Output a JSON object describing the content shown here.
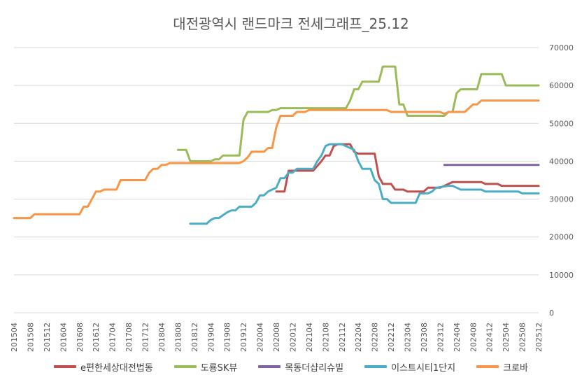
{
  "chart_data": {
    "type": "line",
    "title": "대전광역시 랜드마크 전세그래프_25.12",
    "xlabel": "",
    "ylabel": "",
    "ylim": [
      0,
      70000
    ],
    "yticks": [
      "0",
      "10000",
      "20000",
      "30000",
      "40000",
      "50000",
      "60000",
      "70000"
    ],
    "y_axis_position": "right",
    "grid": true,
    "legend_position": "bottom",
    "x_start": "201504",
    "x_end": "202512",
    "x_tick_labels": [
      "201504",
      "201508",
      "201512",
      "201604",
      "201608",
      "201612",
      "201704",
      "201708",
      "201712",
      "201804",
      "201808",
      "201812",
      "201904",
      "201908",
      "201912",
      "202004",
      "202008",
      "202012",
      "202104",
      "202108",
      "202112",
      "202204",
      "202208",
      "202212",
      "202304",
      "202308",
      "202312",
      "202404",
      "202408",
      "202412",
      "202504",
      "202508",
      "202512"
    ],
    "series": [
      {
        "name": "e편한세상대전법동",
        "color": "#C0504D",
        "points": [
          [
            "202008",
            32000
          ],
          [
            "202010",
            32000
          ],
          [
            "202011",
            37500
          ],
          [
            "202012",
            37500
          ],
          [
            "202105",
            37500
          ],
          [
            "202107",
            40000
          ],
          [
            "202108",
            41500
          ],
          [
            "202109",
            41500
          ],
          [
            "202110",
            44000
          ],
          [
            "202111",
            44500
          ],
          [
            "202202",
            44500
          ],
          [
            "202203",
            42500
          ],
          [
            "202204",
            42000
          ],
          [
            "202208",
            42000
          ],
          [
            "202209",
            36000
          ],
          [
            "202210",
            34000
          ],
          [
            "202212",
            34000
          ],
          [
            "202301",
            32500
          ],
          [
            "202303",
            32500
          ],
          [
            "202304",
            32000
          ],
          [
            "202308",
            32000
          ],
          [
            "202309",
            33000
          ],
          [
            "202312",
            33000
          ],
          [
            "202402",
            34000
          ],
          [
            "202403",
            34500
          ],
          [
            "202410",
            34500
          ],
          [
            "202411",
            34000
          ],
          [
            "202502",
            34000
          ],
          [
            "202503",
            33500
          ],
          [
            "202512",
            33500
          ]
        ]
      },
      {
        "name": "도룡SK뷰",
        "color": "#9BBB59",
        "points": [
          [
            "201808",
            43000
          ],
          [
            "201810",
            43000
          ],
          [
            "201811",
            40000
          ],
          [
            "201904",
            40000
          ],
          [
            "201905",
            40500
          ],
          [
            "201906",
            40500
          ],
          [
            "201907",
            41500
          ],
          [
            "201911",
            41500
          ],
          [
            "201912",
            51000
          ],
          [
            "202001",
            53000
          ],
          [
            "202006",
            53000
          ],
          [
            "202007",
            53500
          ],
          [
            "202008",
            53500
          ],
          [
            "202009",
            54000
          ],
          [
            "202112",
            54000
          ],
          [
            "202201",
            54000
          ],
          [
            "202202",
            56000
          ],
          [
            "202203",
            59000
          ],
          [
            "202204",
            59000
          ],
          [
            "202205",
            61000
          ],
          [
            "202209",
            61000
          ],
          [
            "202210",
            65000
          ],
          [
            "202301",
            65000
          ],
          [
            "202302",
            55000
          ],
          [
            "202303",
            55000
          ],
          [
            "202304",
            52000
          ],
          [
            "202401",
            52000
          ],
          [
            "202402",
            53000
          ],
          [
            "202403",
            53000
          ],
          [
            "202404",
            58000
          ],
          [
            "202405",
            59000
          ],
          [
            "202409",
            59000
          ],
          [
            "202410",
            63000
          ],
          [
            "202503",
            63000
          ],
          [
            "202504",
            60000
          ],
          [
            "202512",
            60000
          ]
        ]
      },
      {
        "name": "목동더샵리슈빌",
        "color": "#8064A2",
        "points": [
          [
            "202401",
            39000
          ],
          [
            "202512",
            39000
          ]
        ]
      },
      {
        "name": "이스트시티1단지",
        "color": "#4BACC6",
        "points": [
          [
            "201811",
            23500
          ],
          [
            "201903",
            23500
          ],
          [
            "201904",
            24500
          ],
          [
            "201905",
            25000
          ],
          [
            "201906",
            25000
          ],
          [
            "201908",
            26500
          ],
          [
            "201909",
            27000
          ],
          [
            "201910",
            27000
          ],
          [
            "201911",
            28000
          ],
          [
            "202002",
            28000
          ],
          [
            "202003",
            29000
          ],
          [
            "202004",
            31000
          ],
          [
            "202005",
            31000
          ],
          [
            "202006",
            32000
          ],
          [
            "202007",
            32500
          ],
          [
            "202008",
            33000
          ],
          [
            "202009",
            35500
          ],
          [
            "202010",
            35500
          ],
          [
            "202011",
            37000
          ],
          [
            "202012",
            37000
          ],
          [
            "202101",
            38000
          ],
          [
            "202105",
            38000
          ],
          [
            "202106",
            40000
          ],
          [
            "202107",
            41500
          ],
          [
            "202108",
            44000
          ],
          [
            "202109",
            44500
          ],
          [
            "202112",
            44500
          ],
          [
            "202201",
            44000
          ],
          [
            "202202",
            43500
          ],
          [
            "202203",
            43000
          ],
          [
            "202204",
            40000
          ],
          [
            "202205",
            38000
          ],
          [
            "202207",
            38000
          ],
          [
            "202208",
            35000
          ],
          [
            "202209",
            34000
          ],
          [
            "202210",
            30000
          ],
          [
            "202211",
            30000
          ],
          [
            "202212",
            29000
          ],
          [
            "202306",
            29000
          ],
          [
            "202307",
            31500
          ],
          [
            "202309",
            31500
          ],
          [
            "202310",
            32000
          ],
          [
            "202311",
            33000
          ],
          [
            "202402",
            33500
          ],
          [
            "202403",
            33500
          ],
          [
            "202404",
            33000
          ],
          [
            "202405",
            32500
          ],
          [
            "202410",
            32500
          ],
          [
            "202411",
            32000
          ],
          [
            "202507",
            32000
          ],
          [
            "202508",
            31500
          ],
          [
            "202512",
            31500
          ]
        ]
      },
      {
        "name": "크로바",
        "color": "#F79646",
        "points": [
          [
            "201504",
            25000
          ],
          [
            "201508",
            25000
          ],
          [
            "201509",
            26000
          ],
          [
            "201608",
            26000
          ],
          [
            "201609",
            28000
          ],
          [
            "201610",
            28000
          ],
          [
            "201612",
            32000
          ],
          [
            "201701",
            32000
          ],
          [
            "201702",
            32500
          ],
          [
            "201705",
            32500
          ],
          [
            "201706",
            35000
          ],
          [
            "201712",
            35000
          ],
          [
            "201801",
            37000
          ],
          [
            "201802",
            38000
          ],
          [
            "201803",
            38000
          ],
          [
            "201804",
            39000
          ],
          [
            "201805",
            39000
          ],
          [
            "201806",
            39500
          ],
          [
            "201911",
            39500
          ],
          [
            "201912",
            40000
          ],
          [
            "202001",
            41000
          ],
          [
            "202002",
            42500
          ],
          [
            "202005",
            42500
          ],
          [
            "202006",
            43500
          ],
          [
            "202007",
            43500
          ],
          [
            "202008",
            49000
          ],
          [
            "202009",
            52000
          ],
          [
            "202012",
            52000
          ],
          [
            "202101",
            53000
          ],
          [
            "202103",
            53000
          ],
          [
            "202104",
            53500
          ],
          [
            "202211",
            53500
          ],
          [
            "202212",
            53000
          ],
          [
            "202312",
            53000
          ],
          [
            "202401",
            52500
          ],
          [
            "202402",
            53000
          ],
          [
            "202406",
            53000
          ],
          [
            "202407",
            54000
          ],
          [
            "202408",
            55000
          ],
          [
            "202409",
            55000
          ],
          [
            "202410",
            56000
          ],
          [
            "202512",
            56000
          ]
        ]
      }
    ]
  }
}
